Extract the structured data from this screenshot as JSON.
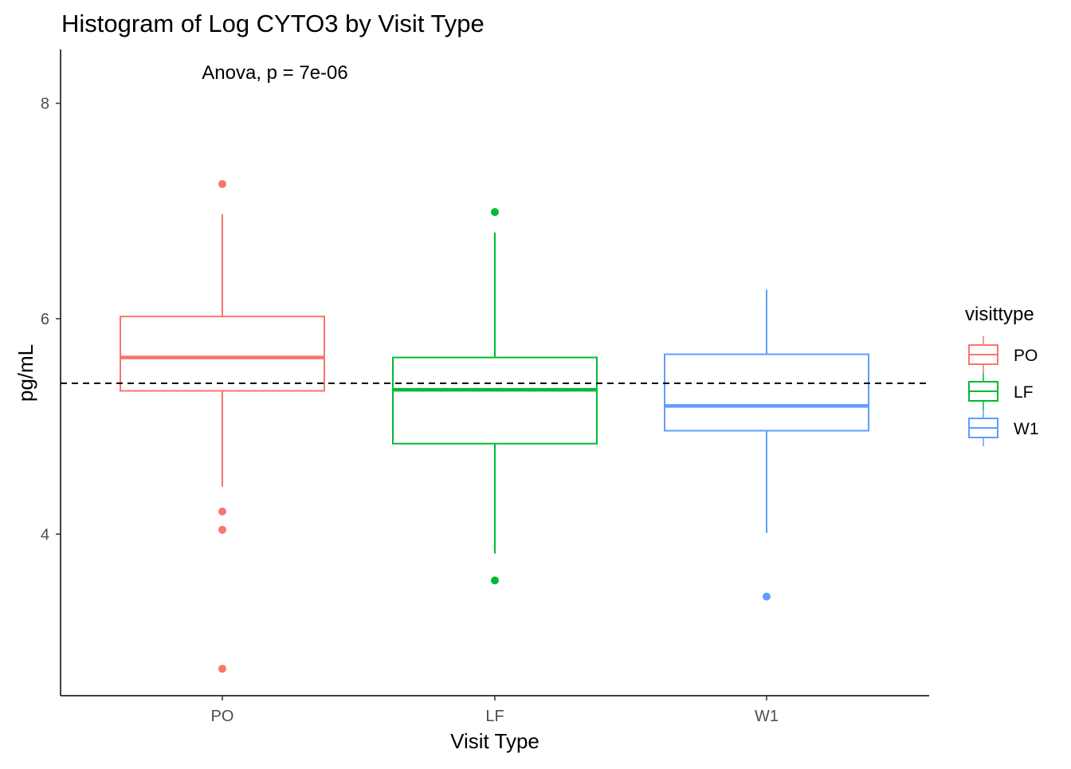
{
  "chart_data": {
    "type": "boxplot",
    "title": "Histogram of Log CYTO3 by Visit Type",
    "xlabel": "Visit Type",
    "ylabel": "pg/mL",
    "ylim": [
      2.5,
      8.5
    ],
    "yticks": [
      "4",
      "6",
      "8"
    ],
    "ytick_values": [
      4,
      6,
      8
    ],
    "categories": [
      "PO",
      "LF",
      "W1"
    ],
    "reference_line": {
      "y": 5.4,
      "style": "dashed"
    },
    "annotation": "Anova, p = 7e-06",
    "grid": false,
    "legend": {
      "title": "visittype",
      "position": "right",
      "labels": [
        "PO",
        "LF",
        "W1"
      ]
    },
    "series": [
      {
        "name": "PO",
        "color": "#F8766D",
        "whisker_low": 4.44,
        "q1": 5.33,
        "median": 5.64,
        "q3": 6.02,
        "whisker_high": 6.97,
        "outliers": [
          7.25,
          4.21,
          4.04,
          2.75
        ]
      },
      {
        "name": "LF",
        "color": "#00BA38",
        "whisker_low": 3.82,
        "q1": 4.84,
        "median": 5.34,
        "q3": 5.64,
        "whisker_high": 6.8,
        "outliers": [
          6.99,
          3.57
        ]
      },
      {
        "name": "W1",
        "color": "#619CFF",
        "whisker_low": 4.01,
        "q1": 4.96,
        "median": 5.19,
        "q3": 5.67,
        "whisker_high": 6.27,
        "outliers": [
          3.42
        ]
      }
    ]
  }
}
